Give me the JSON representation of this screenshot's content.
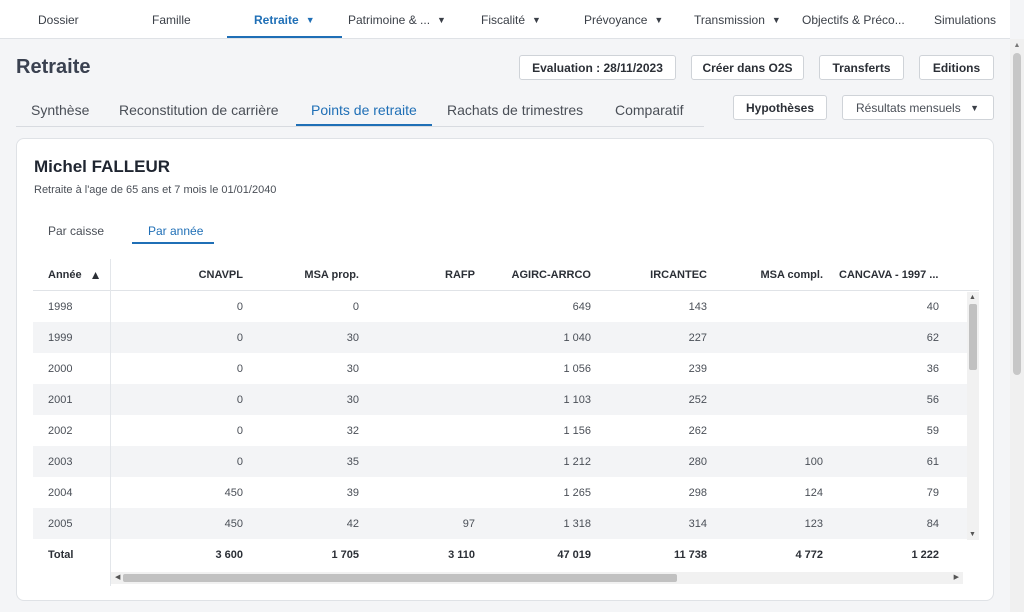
{
  "topnav": {
    "items": [
      {
        "label": "Dossier",
        "dropdown": false
      },
      {
        "label": "Famille",
        "dropdown": false
      },
      {
        "label": "Retraite",
        "dropdown": true
      },
      {
        "label": "Patrimoine & ...",
        "dropdown": true
      },
      {
        "label": "Fiscalité",
        "dropdown": true
      },
      {
        "label": "Prévoyance",
        "dropdown": true
      },
      {
        "label": "Transmission",
        "dropdown": true
      },
      {
        "label": "Objectifs & Préco...",
        "dropdown": false
      },
      {
        "label": "Simulations",
        "dropdown": false
      }
    ],
    "active_index": 2
  },
  "header": {
    "title": "Retraite",
    "buttons": {
      "evaluation": "Evaluation : 28/11/2023",
      "creer": "Créer dans O2S",
      "transferts": "Transferts",
      "editions": "Editions"
    }
  },
  "subtabs": {
    "items": [
      "Synthèse",
      "Reconstitution de carrière",
      "Points de retraite",
      "Rachats de trimestres",
      "Comparatif"
    ],
    "active_index": 2
  },
  "toolbar": {
    "hypotheses": "Hypothèses",
    "results_select": "Résultats mensuels"
  },
  "person": {
    "name": "Michel FALLEUR",
    "subtitle": "Retraite à l'age de 65 ans et 7 mois le 01/01/2040"
  },
  "inner_tabs": {
    "items": [
      "Par caisse",
      "Par année"
    ],
    "active_index": 1
  },
  "table": {
    "columns": [
      "Année",
      "CNAVPL",
      "MSA prop.",
      "RAFP",
      "AGIRC-ARRCO",
      "IRCANTEC",
      "MSA compl.",
      "CANCAVA - 1997 ..."
    ],
    "rows": [
      [
        "1998",
        "0",
        "0",
        "",
        "649",
        "143",
        "",
        "40"
      ],
      [
        "1999",
        "0",
        "30",
        "",
        "1 040",
        "227",
        "",
        "62"
      ],
      [
        "2000",
        "0",
        "30",
        "",
        "1 056",
        "239",
        "",
        "36"
      ],
      [
        "2001",
        "0",
        "30",
        "",
        "1 103",
        "252",
        "",
        "56"
      ],
      [
        "2002",
        "0",
        "32",
        "",
        "1 156",
        "262",
        "",
        "59"
      ],
      [
        "2003",
        "0",
        "35",
        "",
        "1 212",
        "280",
        "100",
        "61"
      ],
      [
        "2004",
        "450",
        "39",
        "",
        "1 265",
        "298",
        "124",
        "79"
      ],
      [
        "2005",
        "450",
        "42",
        "97",
        "1 318",
        "314",
        "123",
        "84"
      ]
    ],
    "total": [
      "Total",
      "3 600",
      "1 705",
      "3 110",
      "47 019",
      "11 738",
      "4 772",
      "1 222"
    ]
  },
  "icons": {
    "dropdown": "chevron-down-icon",
    "sort": "chevron-up-icon"
  }
}
